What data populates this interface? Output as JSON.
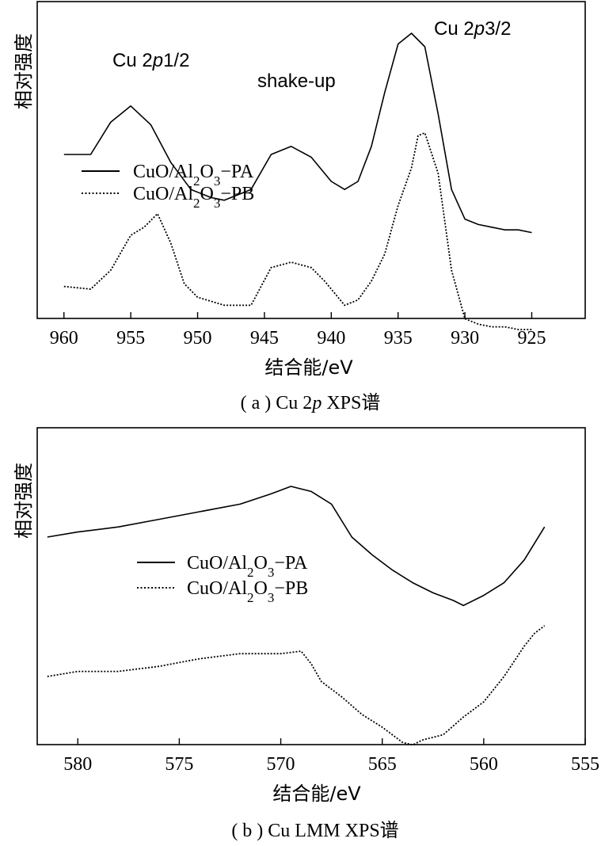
{
  "chart_data": [
    {
      "type": "line",
      "caption": "( a ) Cu 2p XPS谱",
      "xlabel": "结合能/eV",
      "ylabel": "相对强度",
      "xlim": [
        962,
        921
      ],
      "x_reversed": true,
      "x_ticks": [
        960,
        955,
        950,
        945,
        940,
        935,
        930,
        925
      ],
      "y_ticks_shown": false,
      "annotations": [
        {
          "text": "Cu 2p1/2",
          "x": 955
        },
        {
          "text": "shake-up",
          "x": 943
        },
        {
          "text": "Cu 2p3/2",
          "x": 934
        }
      ],
      "legend": {
        "position": "center-left",
        "entries": [
          "CuO/Al2O3−PA",
          "CuO/Al2O3−PB"
        ]
      },
      "series": [
        {
          "name": "CuO/Al2O3−PA",
          "style": "solid",
          "x": [
            960,
            958,
            956.5,
            955,
            953.5,
            952,
            950.5,
            949,
            948,
            946,
            944.5,
            943,
            941.5,
            940,
            939,
            938,
            937,
            936,
            935,
            934,
            933,
            932,
            931,
            930,
            929,
            928,
            927,
            926,
            925
          ],
          "y": [
            0.55,
            0.55,
            0.67,
            0.73,
            0.66,
            0.52,
            0.42,
            0.39,
            0.38,
            0.42,
            0.55,
            0.58,
            0.54,
            0.45,
            0.42,
            0.45,
            0.58,
            0.78,
            0.96,
            1.0,
            0.95,
            0.7,
            0.42,
            0.31,
            0.29,
            0.28,
            0.27,
            0.27,
            0.26
          ]
        },
        {
          "name": "CuO/Al2O3−PB",
          "style": "dotted",
          "x": [
            960,
            958,
            956.5,
            955,
            954,
            953,
            952,
            951,
            950,
            948,
            946,
            944.5,
            943,
            941.5,
            940.5,
            939.5,
            939,
            938,
            937,
            936,
            935,
            934,
            933.5,
            933,
            932,
            931,
            930,
            929,
            928,
            927,
            926,
            925
          ],
          "y": [
            0.06,
            0.05,
            0.12,
            0.25,
            0.28,
            0.33,
            0.22,
            0.07,
            0.02,
            -0.01,
            -0.01,
            0.13,
            0.15,
            0.13,
            0.08,
            0.02,
            -0.01,
            0.01,
            0.08,
            0.18,
            0.36,
            0.5,
            0.62,
            0.63,
            0.48,
            0.12,
            -0.06,
            -0.08,
            -0.09,
            -0.09,
            -0.1,
            -0.1
          ]
        }
      ]
    },
    {
      "type": "line",
      "caption": "( b ) Cu LMM XPS谱",
      "xlabel": "结合能/eV",
      "ylabel": "相对强度",
      "xlim": [
        582,
        555
      ],
      "x_reversed": true,
      "x_ticks": [
        580,
        575,
        570,
        565,
        560,
        555
      ],
      "y_ticks_shown": false,
      "legend": {
        "position": "center",
        "entries": [
          "CuO/Al2O3−PA",
          "CuO/Al2O3−PB"
        ]
      },
      "series": [
        {
          "name": "CuO/Al2O3−PA",
          "style": "solid",
          "x": [
            581.5,
            580,
            578,
            576,
            574,
            572,
            570.5,
            569.5,
            568.5,
            567.5,
            566.5,
            565.5,
            564.5,
            563.5,
            562.5,
            561.5,
            561,
            560,
            559,
            558,
            557
          ],
          "y": [
            0.75,
            0.77,
            0.79,
            0.82,
            0.85,
            0.88,
            0.92,
            0.95,
            0.93,
            0.88,
            0.75,
            0.68,
            0.62,
            0.57,
            0.53,
            0.5,
            0.48,
            0.52,
            0.57,
            0.66,
            0.79
          ]
        },
        {
          "name": "CuO/Al2O3−PB",
          "style": "dotted",
          "x": [
            581.5,
            580,
            578,
            576,
            574,
            572,
            570,
            569,
            568.5,
            568,
            567,
            566,
            565,
            564,
            563.5,
            563,
            562,
            561,
            560,
            559,
            558,
            557.5,
            557
          ],
          "y": [
            0.2,
            0.22,
            0.22,
            0.24,
            0.27,
            0.29,
            0.29,
            0.3,
            0.25,
            0.18,
            0.12,
            0.05,
            0.0,
            -0.06,
            -0.07,
            -0.05,
            -0.03,
            0.04,
            0.1,
            0.2,
            0.32,
            0.37,
            0.4
          ]
        }
      ]
    }
  ]
}
